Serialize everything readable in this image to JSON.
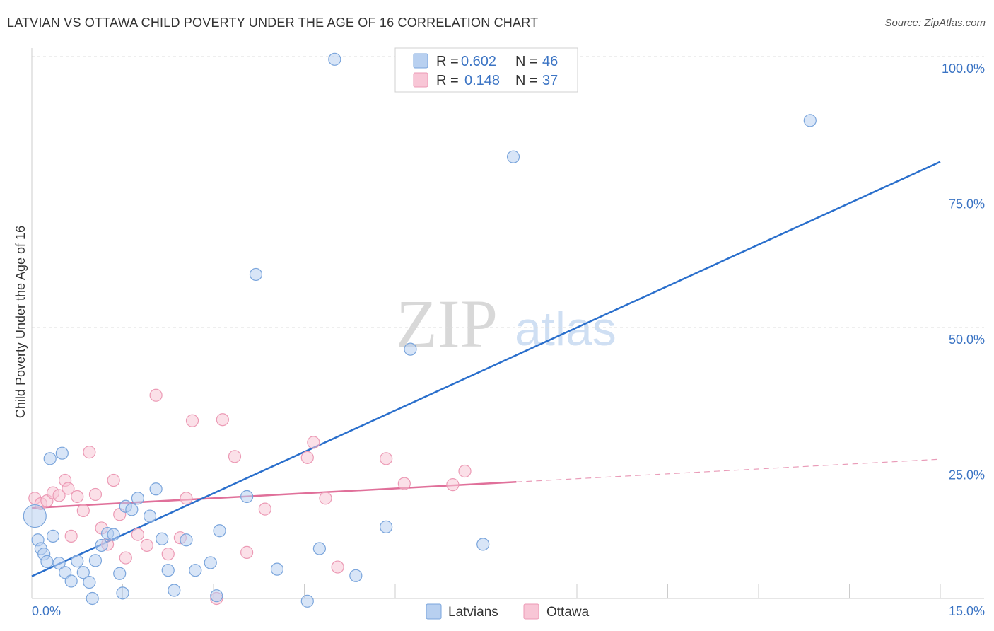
{
  "title": "LATVIAN VS OTTAWA CHILD POVERTY UNDER THE AGE OF 16 CORRELATION CHART",
  "source": "Source: ZipAtlas.com",
  "watermark": {
    "zip": "ZIP",
    "atlas": "atlas"
  },
  "colors": {
    "latvians_fill": "#b8d0f0",
    "latvians_stroke": "#7aa5dc",
    "latvians_line": "#2a6fcc",
    "ottawa_fill": "#f8c6d6",
    "ottawa_stroke": "#ec9ab5",
    "ottawa_line": "#e0709a",
    "tick_text": "#3b74c4"
  },
  "legend": {
    "rows": [
      {
        "r_label": "R =",
        "r_value": "0.602",
        "n_label": "N =",
        "n_value": "46"
      },
      {
        "r_label": "R =",
        "r_value": "0.148",
        "n_label": "N =",
        "n_value": "37"
      }
    ]
  },
  "chart_data": {
    "type": "scatter",
    "title": "LATVIAN VS OTTAWA CHILD POVERTY UNDER THE AGE OF 16 CORRELATION CHART",
    "xlabel": "",
    "ylabel": "Child Poverty Under the Age of 16",
    "xlim": [
      0,
      15
    ],
    "ylim": [
      0,
      100
    ],
    "x_tick_labels": [
      "0.0%",
      "15.0%"
    ],
    "y_ticks": [
      25,
      50,
      75,
      100
    ],
    "y_tick_labels": [
      "25.0%",
      "50.0%",
      "75.0%",
      "100.0%"
    ],
    "grid": true,
    "series": [
      {
        "name": "Latvians",
        "trend": {
          "x": [
            0,
            15
          ],
          "y": [
            4.1,
            80.6
          ]
        },
        "points": [
          {
            "x": 0.05,
            "y": 15.2,
            "big": true
          },
          {
            "x": 0.1,
            "y": 10.8
          },
          {
            "x": 0.15,
            "y": 9.2
          },
          {
            "x": 0.2,
            "y": 8.2
          },
          {
            "x": 0.25,
            "y": 6.8
          },
          {
            "x": 0.35,
            "y": 11.5
          },
          {
            "x": 0.45,
            "y": 6.5
          },
          {
            "x": 0.55,
            "y": 4.8
          },
          {
            "x": 0.65,
            "y": 3.2
          },
          {
            "x": 0.75,
            "y": 6.9
          },
          {
            "x": 0.85,
            "y": 4.8
          },
          {
            "x": 0.95,
            "y": 3.0
          },
          {
            "x": 1.05,
            "y": 7.0
          },
          {
            "x": 1.15,
            "y": 9.8
          },
          {
            "x": 1.25,
            "y": 12.0
          },
          {
            "x": 1.35,
            "y": 11.8
          },
          {
            "x": 1.45,
            "y": 4.6
          },
          {
            "x": 1.55,
            "y": 17.0
          },
          {
            "x": 1.65,
            "y": 16.4
          },
          {
            "x": 1.75,
            "y": 18.5
          },
          {
            "x": 1.95,
            "y": 15.2
          },
          {
            "x": 2.05,
            "y": 20.2
          },
          {
            "x": 2.15,
            "y": 11.0
          },
          {
            "x": 2.25,
            "y": 5.2
          },
          {
            "x": 2.35,
            "y": 1.5
          },
          {
            "x": 2.55,
            "y": 10.8
          },
          {
            "x": 2.7,
            "y": 5.2
          },
          {
            "x": 2.95,
            "y": 6.6
          },
          {
            "x": 3.05,
            "y": 0.5
          },
          {
            "x": 3.1,
            "y": 12.5
          },
          {
            "x": 3.55,
            "y": 18.8
          },
          {
            "x": 4.05,
            "y": 5.4
          },
          {
            "x": 4.55,
            "y": -0.5
          },
          {
            "x": 4.75,
            "y": 9.2
          },
          {
            "x": 5.35,
            "y": 4.2
          },
          {
            "x": 5.85,
            "y": 13.2
          },
          {
            "x": 6.25,
            "y": 46.0
          },
          {
            "x": 7.45,
            "y": 10.0
          },
          {
            "x": 0.3,
            "y": 25.8
          },
          {
            "x": 0.5,
            "y": 26.8
          },
          {
            "x": 1.0,
            "y": 0.0
          },
          {
            "x": 1.5,
            "y": 1.0
          },
          {
            "x": 3.7,
            "y": 59.8
          },
          {
            "x": 5.0,
            "y": 99.5
          },
          {
            "x": 7.95,
            "y": 81.5
          },
          {
            "x": 12.85,
            "y": 88.2
          }
        ]
      },
      {
        "name": "Ottawa",
        "trend": {
          "x": [
            0,
            8
          ],
          "y": [
            16.7,
            21.5
          ]
        },
        "trend_dashed": {
          "x": [
            8,
            15
          ],
          "y": [
            21.5,
            25.7
          ]
        },
        "points": [
          {
            "x": 0.05,
            "y": 18.5
          },
          {
            "x": 0.15,
            "y": 17.5
          },
          {
            "x": 0.25,
            "y": 18.0
          },
          {
            "x": 0.35,
            "y": 19.5
          },
          {
            "x": 0.45,
            "y": 19.0
          },
          {
            "x": 0.55,
            "y": 21.8
          },
          {
            "x": 0.65,
            "y": 11.5
          },
          {
            "x": 0.75,
            "y": 18.8
          },
          {
            "x": 0.85,
            "y": 16.2
          },
          {
            "x": 0.95,
            "y": 27.0
          },
          {
            "x": 1.05,
            "y": 19.2
          },
          {
            "x": 1.15,
            "y": 13.0
          },
          {
            "x": 1.25,
            "y": 10.0
          },
          {
            "x": 1.35,
            "y": 21.8
          },
          {
            "x": 1.45,
            "y": 15.5
          },
          {
            "x": 1.55,
            "y": 7.5
          },
          {
            "x": 1.75,
            "y": 11.8
          },
          {
            "x": 1.9,
            "y": 9.8
          },
          {
            "x": 2.05,
            "y": 37.5
          },
          {
            "x": 2.25,
            "y": 8.2
          },
          {
            "x": 2.45,
            "y": 11.2
          },
          {
            "x": 2.55,
            "y": 18.5
          },
          {
            "x": 2.65,
            "y": 32.8
          },
          {
            "x": 3.05,
            "y": 0.0
          },
          {
            "x": 3.15,
            "y": 33.0
          },
          {
            "x": 3.35,
            "y": 26.2
          },
          {
            "x": 3.55,
            "y": 8.5
          },
          {
            "x": 3.85,
            "y": 16.5
          },
          {
            "x": 4.55,
            "y": 26.0
          },
          {
            "x": 4.65,
            "y": 28.8
          },
          {
            "x": 4.85,
            "y": 18.5
          },
          {
            "x": 5.05,
            "y": 5.8
          },
          {
            "x": 5.85,
            "y": 25.8
          },
          {
            "x": 6.15,
            "y": 21.2
          },
          {
            "x": 6.95,
            "y": 21.0
          },
          {
            "x": 7.15,
            "y": 23.5
          },
          {
            "x": 0.6,
            "y": 20.3
          }
        ]
      }
    ]
  }
}
